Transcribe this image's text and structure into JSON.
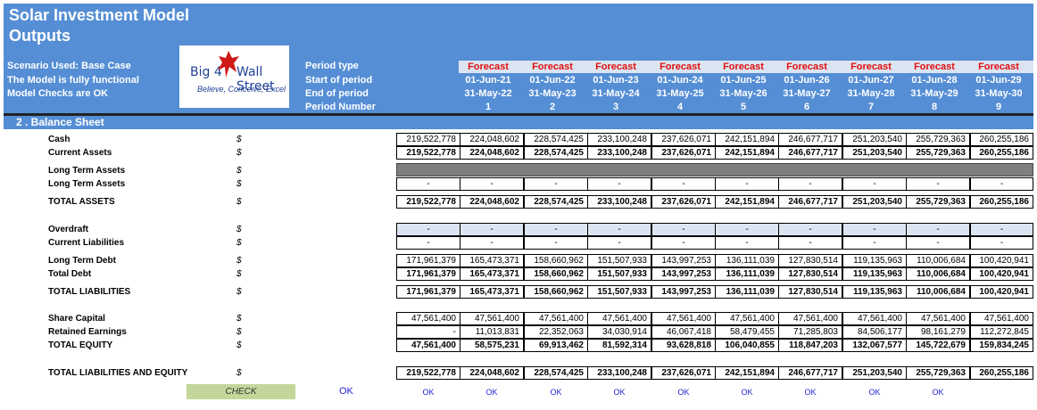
{
  "header": {
    "title_line1": "Solar Investment Model",
    "title_line2": "Outputs",
    "scenario": "Scenario Used:  Base Case",
    "functional": "The Model is fully functional",
    "checks": "Model Checks are OK",
    "logo_left": "Big 4",
    "logo_right": "Wall Street",
    "logo_tagline": "Believe, Conceive, Excel",
    "period_labels": [
      "Period type",
      "Start of period",
      "End of period",
      "Period Number"
    ]
  },
  "periods": [
    {
      "type": "Forecast",
      "start": "01-Jun-21",
      "end": "31-May-22",
      "num": "1"
    },
    {
      "type": "Forecast",
      "start": "01-Jun-22",
      "end": "31-May-23",
      "num": "2"
    },
    {
      "type": "Forecast",
      "start": "01-Jun-23",
      "end": "31-May-24",
      "num": "3"
    },
    {
      "type": "Forecast",
      "start": "01-Jun-24",
      "end": "31-May-25",
      "num": "4"
    },
    {
      "type": "Forecast",
      "start": "01-Jun-25",
      "end": "31-May-26",
      "num": "5"
    },
    {
      "type": "Forecast",
      "start": "01-Jun-26",
      "end": "31-May-27",
      "num": "6"
    },
    {
      "type": "Forecast",
      "start": "01-Jun-27",
      "end": "31-May-28",
      "num": "7"
    },
    {
      "type": "Forecast",
      "start": "01-Jun-28",
      "end": "31-May-29",
      "num": "8"
    },
    {
      "type": "Forecast",
      "start": "01-Jun-29",
      "end": "31-May-30",
      "num": "9"
    }
  ],
  "section_title": "2 . Balance Sheet",
  "currency_symbol": "$",
  "rows": {
    "cash": {
      "label": "Cash",
      "values": [
        "219,522,778",
        "224,048,602",
        "228,574,425",
        "233,100,248",
        "237,626,071",
        "242,151,894",
        "246,677,717",
        "251,203,540",
        "255,729,363",
        "260,255,186"
      ]
    },
    "current_assets": {
      "label": "Current Assets",
      "values": [
        "219,522,778",
        "224,048,602",
        "228,574,425",
        "233,100,248",
        "237,626,071",
        "242,151,894",
        "246,677,717",
        "251,203,540",
        "255,729,363",
        "260,255,186"
      ]
    },
    "lta_header": {
      "label": "Long Term Assets"
    },
    "lta": {
      "label": "Long Term Assets",
      "values": [
        "-",
        "-",
        "-",
        "-",
        "-",
        "-",
        "-",
        "-",
        "-",
        "-"
      ]
    },
    "total_assets": {
      "label": "TOTAL ASSETS",
      "values": [
        "219,522,778",
        "224,048,602",
        "228,574,425",
        "233,100,248",
        "237,626,071",
        "242,151,894",
        "246,677,717",
        "251,203,540",
        "255,729,363",
        "260,255,186"
      ]
    },
    "overdraft": {
      "label": "Overdraft",
      "values": [
        "-",
        "-",
        "-",
        "-",
        "-",
        "-",
        "-",
        "-",
        "-",
        "-"
      ]
    },
    "current_liabilities": {
      "label": "Current Liabilities",
      "values": [
        "-",
        "-",
        "-",
        "-",
        "-",
        "-",
        "-",
        "-",
        "-",
        "-"
      ]
    },
    "ltd": {
      "label": "Long Term Debt",
      "values": [
        "171,961,379",
        "165,473,371",
        "158,660,962",
        "151,507,933",
        "143,997,253",
        "136,111,039",
        "127,830,514",
        "119,135,963",
        "110,006,684",
        "100,420,941"
      ]
    },
    "total_debt": {
      "label": "Total Debt",
      "values": [
        "171,961,379",
        "165,473,371",
        "158,660,962",
        "151,507,933",
        "143,997,253",
        "136,111,039",
        "127,830,514",
        "119,135,963",
        "110,006,684",
        "100,420,941"
      ]
    },
    "total_liabilities": {
      "label": "TOTAL LIABILITIES",
      "values": [
        "171,961,379",
        "165,473,371",
        "158,660,962",
        "151,507,933",
        "143,997,253",
        "136,111,039",
        "127,830,514",
        "119,135,963",
        "110,006,684",
        "100,420,941"
      ]
    },
    "share_capital": {
      "label": "Share Capital",
      "values": [
        "47,561,400",
        "47,561,400",
        "47,561,400",
        "47,561,400",
        "47,561,400",
        "47,561,400",
        "47,561,400",
        "47,561,400",
        "47,561,400",
        "47,561,400"
      ]
    },
    "retained": {
      "label": "Retained Earnings",
      "values": [
        "-",
        "11,013,831",
        "22,352,063",
        "34,030,914",
        "46,067,418",
        "58,479,455",
        "71,285,803",
        "84,506,177",
        "98,161,279",
        "112,272,845"
      ]
    },
    "total_equity": {
      "label": "TOTAL EQUITY",
      "values": [
        "47,561,400",
        "58,575,231",
        "69,913,462",
        "81,592,314",
        "93,628,818",
        "106,040,855",
        "118,847,203",
        "132,067,577",
        "145,722,679",
        "159,834,245"
      ]
    },
    "tle": {
      "label": "TOTAL LIABILITIES AND EQUITY",
      "values": [
        "219,522,778",
        "224,048,602",
        "228,574,425",
        "233,100,248",
        "237,626,071",
        "242,151,894",
        "246,677,717",
        "251,203,540",
        "255,729,363",
        "260,255,186"
      ]
    }
  },
  "check": {
    "label": "CHECK",
    "overall": "OK",
    "per_period": [
      "OK",
      "OK",
      "OK",
      "OK",
      "OK",
      "OK",
      "OK",
      "OK",
      "OK"
    ]
  }
}
